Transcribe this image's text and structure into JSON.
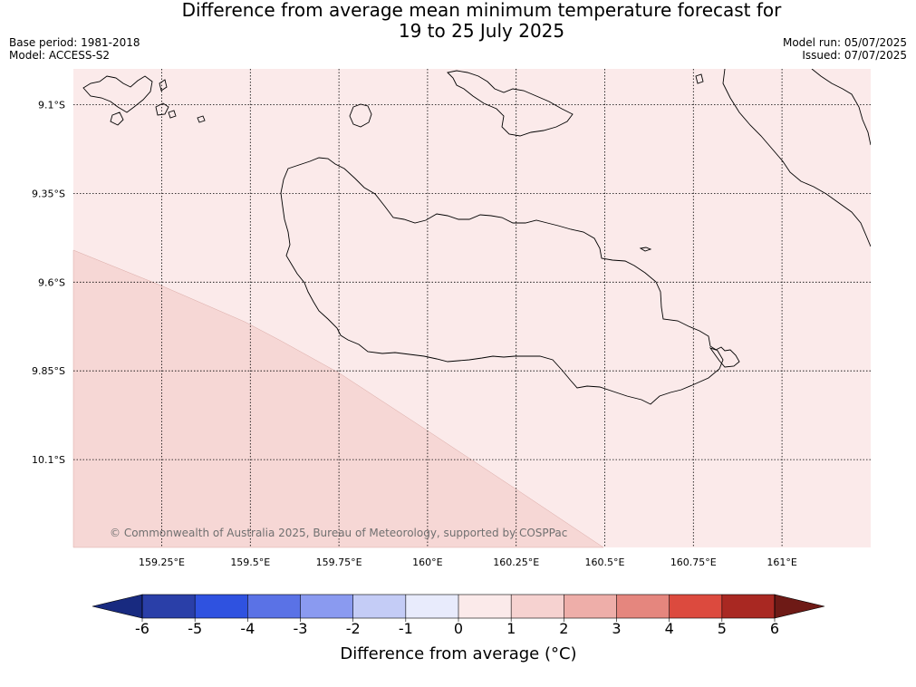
{
  "title_line1": "Difference from average mean minimum temperature forecast for",
  "title_line2": "19 to 25 July 2025",
  "base_period": "Base period: 1981-2018",
  "model": "Model: ACCESS-S2",
  "model_run": "Model run: 05/07/2025",
  "issued": "Issued: 07/07/2025",
  "copyright": "© Commonwealth of Australia 2025, Bureau of Meteorology, supported by COSPPac",
  "lat_labels": [
    "9.1°S",
    "9.35°S",
    "9.6°S",
    "9.85°S",
    "10.1°S"
  ],
  "lon_labels": [
    "159.25°E",
    "159.5°E",
    "159.75°E",
    "160°E",
    "160.25°E",
    "160.5°E",
    "160.75°E",
    "161°E"
  ],
  "colorbar": {
    "title": "Difference from average (°C)",
    "ticks": [
      "-6",
      "-5",
      "-4",
      "-3",
      "-2",
      "-1",
      "0",
      "1",
      "2",
      "3",
      "4",
      "5",
      "6"
    ],
    "colors": [
      "#182a80",
      "#2a3fa8",
      "#2f52e0",
      "#5a72e6",
      "#8a9af0",
      "#c4ccf6",
      "#e8ebfc",
      "#fbeaea",
      "#f6d2d0",
      "#eeaea9",
      "#e5867e",
      "#dc4a3e",
      "#a92822",
      "#6e1a16"
    ]
  },
  "map": {
    "categories": [
      "0 to 1",
      "1 to 2"
    ],
    "fill_colors": [
      "#fbeaea",
      "#f6d7d5"
    ]
  }
}
